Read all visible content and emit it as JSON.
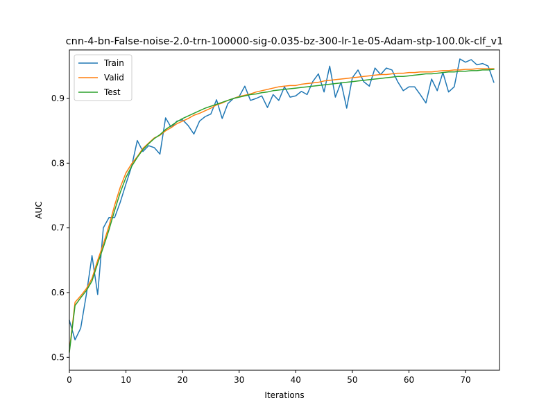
{
  "chart_data": {
    "type": "line",
    "title": "cnn-4-bn-False-noise-2.0-trn-100000-sig-0.035-bz-300-lr-1e-05-Adam-stp-100.0k-clf_v1",
    "xlabel": "Iterations",
    "ylabel": "AUC",
    "xlim": [
      0,
      76
    ],
    "ylim": [
      0.48,
      0.975
    ],
    "x_ticks": [
      0,
      10,
      20,
      30,
      40,
      50,
      60,
      70
    ],
    "y_ticks": [
      0.5,
      0.6,
      0.7,
      0.8,
      0.9
    ],
    "grid": false,
    "legend_position": "top-left",
    "x": [
      0,
      1,
      2,
      3,
      4,
      5,
      6,
      7,
      8,
      9,
      10,
      11,
      12,
      13,
      14,
      15,
      16,
      17,
      18,
      19,
      20,
      21,
      22,
      23,
      24,
      25,
      26,
      27,
      28,
      29,
      30,
      31,
      32,
      33,
      34,
      35,
      36,
      37,
      38,
      39,
      40,
      41,
      42,
      43,
      44,
      45,
      46,
      47,
      48,
      49,
      50,
      51,
      52,
      53,
      54,
      55,
      56,
      57,
      58,
      59,
      60,
      61,
      62,
      63,
      64,
      65,
      66,
      67,
      68,
      69,
      70,
      71,
      72,
      73,
      74,
      75
    ],
    "series": [
      {
        "name": "Train",
        "color": "#1f77b4",
        "values": [
          0.557,
          0.527,
          0.545,
          0.597,
          0.657,
          0.597,
          0.7,
          0.716,
          0.716,
          0.74,
          0.768,
          0.795,
          0.835,
          0.818,
          0.827,
          0.824,
          0.814,
          0.87,
          0.855,
          0.865,
          0.867,
          0.858,
          0.845,
          0.865,
          0.872,
          0.876,
          0.898,
          0.869,
          0.892,
          0.9,
          0.903,
          0.919,
          0.897,
          0.9,
          0.904,
          0.886,
          0.906,
          0.897,
          0.918,
          0.902,
          0.904,
          0.911,
          0.906,
          0.926,
          0.938,
          0.91,
          0.95,
          0.902,
          0.925,
          0.885,
          0.932,
          0.944,
          0.926,
          0.919,
          0.947,
          0.937,
          0.947,
          0.944,
          0.926,
          0.912,
          0.918,
          0.918,
          0.906,
          0.893,
          0.93,
          0.912,
          0.94,
          0.91,
          0.918,
          0.961,
          0.956,
          0.96,
          0.952,
          0.954,
          0.95,
          0.925
        ]
      },
      {
        "name": "Valid",
        "color": "#ff7f0e",
        "values": [
          0.51,
          0.585,
          0.595,
          0.606,
          0.622,
          0.65,
          0.675,
          0.703,
          0.735,
          0.763,
          0.785,
          0.799,
          0.81,
          0.823,
          0.831,
          0.839,
          0.843,
          0.85,
          0.855,
          0.861,
          0.865,
          0.869,
          0.874,
          0.877,
          0.881,
          0.885,
          0.89,
          0.893,
          0.897,
          0.9,
          0.903,
          0.905,
          0.907,
          0.91,
          0.912,
          0.914,
          0.916,
          0.918,
          0.919,
          0.92,
          0.92,
          0.922,
          0.923,
          0.924,
          0.925,
          0.927,
          0.928,
          0.929,
          0.93,
          0.931,
          0.932,
          0.933,
          0.934,
          0.935,
          0.936,
          0.937,
          0.937,
          0.938,
          0.939,
          0.939,
          0.94,
          0.94,
          0.941,
          0.941,
          0.941,
          0.942,
          0.943,
          0.943,
          0.944,
          0.944,
          0.945,
          0.945,
          0.946,
          0.946,
          0.946,
          0.946
        ]
      },
      {
        "name": "Test",
        "color": "#2ca02c",
        "values": [
          0.508,
          0.58,
          0.592,
          0.603,
          0.618,
          0.645,
          0.67,
          0.697,
          0.727,
          0.755,
          0.778,
          0.795,
          0.809,
          0.821,
          0.83,
          0.838,
          0.844,
          0.852,
          0.858,
          0.864,
          0.869,
          0.873,
          0.877,
          0.881,
          0.885,
          0.888,
          0.891,
          0.894,
          0.897,
          0.9,
          0.902,
          0.904,
          0.906,
          0.907,
          0.909,
          0.91,
          0.912,
          0.913,
          0.914,
          0.915,
          0.916,
          0.917,
          0.918,
          0.919,
          0.92,
          0.921,
          0.922,
          0.923,
          0.924,
          0.925,
          0.926,
          0.927,
          0.928,
          0.929,
          0.93,
          0.931,
          0.932,
          0.933,
          0.934,
          0.934,
          0.935,
          0.936,
          0.937,
          0.938,
          0.938,
          0.939,
          0.94,
          0.941,
          0.941,
          0.942,
          0.942,
          0.943,
          0.943,
          0.944,
          0.944,
          0.945
        ]
      }
    ]
  }
}
